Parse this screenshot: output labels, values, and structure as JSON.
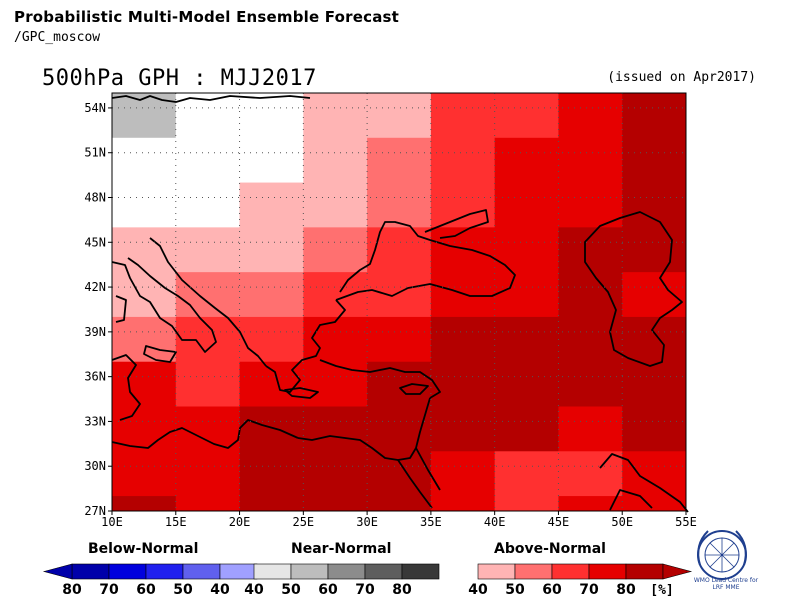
{
  "header": {
    "title": "Probabilistic Multi-Model Ensemble Forecast",
    "source": "/GPC_moscow",
    "variable_period": "500hPa GPH : MJJ2017",
    "issued": "(issued on Apr2017)"
  },
  "map": {
    "lat_labels": [
      "54N",
      "51N",
      "48N",
      "45N",
      "42N",
      "39N",
      "36N",
      "33N",
      "30N",
      "27N"
    ],
    "lon_labels": [
      "10E",
      "15E",
      "20E",
      "25E",
      "30E",
      "35E",
      "40E",
      "45E",
      "50E",
      "55E"
    ],
    "lat_range": [
      27,
      55
    ],
    "lon_range": [
      10,
      55
    ],
    "grid_lines": "dotted"
  },
  "legend": {
    "below": {
      "title": "Below-Normal",
      "labels": [
        "80",
        "70",
        "60",
        "50",
        "40"
      ],
      "colors": [
        "#0000aa",
        "#0000dd",
        "#2020ee",
        "#6060ee",
        "#a0a0ff"
      ]
    },
    "near": {
      "title": "Near-Normal",
      "labels": [
        "40",
        "50",
        "60",
        "70",
        "80"
      ],
      "colors": [
        "#e6e6e6",
        "#bdbdbd",
        "#8c8c8c",
        "#5e5e5e",
        "#383838"
      ]
    },
    "above": {
      "title": "Above-Normal",
      "labels": [
        "40",
        "50",
        "60",
        "70",
        "80"
      ],
      "colors": [
        "#ffb4b4",
        "#ff7070",
        "#ff3030",
        "#e60000",
        "#b40000"
      ]
    },
    "unit": "[%]"
  },
  "logo": {
    "name": "WMO Lead Centre for LRF MME",
    "line1": "WMO Lead Centre for",
    "line2": "LRF MME"
  }
}
